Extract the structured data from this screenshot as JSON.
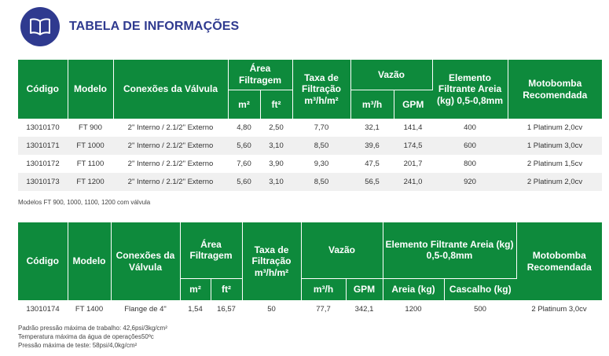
{
  "header": {
    "title": "TABELA DE INFORMAÇÕES",
    "icon": "open-book-icon",
    "accent": "#2f3a8f",
    "header_green": "#0e8a3c"
  },
  "table1": {
    "headers": {
      "codigo": "Código",
      "modelo": "Modelo",
      "conexoes": "Conexões da Válvula",
      "area": "Área Filtragem",
      "m2": "m²",
      "ft2": "ft²",
      "taxa": "Taxa de Filtração m³/h/m²",
      "vazao": "Vazão",
      "m3h": "m³/h",
      "gpm": "GPM",
      "elemento": "Elemento Filtrante Areia (kg) 0,5-0,8mm",
      "motobomba": "Motobomba Recomendada"
    },
    "rows": [
      {
        "codigo": "13010170",
        "modelo": "FT 900",
        "conexoes": "2\" Interno / 2.1/2\" Externo",
        "m2": "4,80",
        "ft2": "2,50",
        "taxa": "7,70",
        "m3h": "32,1",
        "gpm": "141,4",
        "areia": "400",
        "motobomba": "1 Platinum 2,0cv"
      },
      {
        "codigo": "13010171",
        "modelo": "FT 1000",
        "conexoes": "2\" Interno / 2.1/2\" Externo",
        "m2": "5,60",
        "ft2": "3,10",
        "taxa": "8,50",
        "m3h": "39,6",
        "gpm": "174,5",
        "areia": "600",
        "motobomba": "1 Platinum 3,0cv"
      },
      {
        "codigo": "13010172",
        "modelo": "FT 1100",
        "conexoes": "2\" Interno / 2.1/2\" Externo",
        "m2": "7,60",
        "ft2": "3,90",
        "taxa": "9,30",
        "m3h": "47,5",
        "gpm": "201,7",
        "areia": "800",
        "motobomba": "2 Platinum 1,5cv"
      },
      {
        "codigo": "13010173",
        "modelo": "FT 1200",
        "conexoes": "2\" Interno / 2.1/2\" Externo",
        "m2": "5,60",
        "ft2": "3,10",
        "taxa": "8,50",
        "m3h": "56,5",
        "gpm": "241,0",
        "areia": "920",
        "motobomba": "2 Platinum 2,0cv"
      }
    ],
    "note": "Modelos FT 900, 1000, 1100, 1200 com válvula"
  },
  "table2": {
    "headers": {
      "codigo": "Código",
      "modelo": "Modelo",
      "conexoes": "Conexões da Válvula",
      "area": "Área Filtragem",
      "m2": "m²",
      "ft2": "ft²",
      "taxa": "Taxa de Filtração m³/h/m²",
      "vazao": "Vazão",
      "m3h": "m³/h",
      "gpm": "GPM",
      "elemento": "Elemento Filtrante Areia (kg) 0,5-0,8mm",
      "areia": "Areia (kg)",
      "cascalho": "Cascalho (kg)",
      "motobomba": "Motobomba Recomendada"
    },
    "row": {
      "codigo": "13010174",
      "modelo": "FT 1400",
      "conexoes": "Flange de 4\"",
      "m2": "1,54",
      "ft2": "16,57",
      "taxa": "50",
      "m3h": "77,7",
      "gpm": "342,1",
      "areia": "1200",
      "cascalho": "500",
      "motobomba": "2 Platinum 3,0cv"
    }
  },
  "footnotes": [
    "Padrão pressão máxima de trabalho: 42,6psi/3kg/cm²",
    "Temperatura máxima da água de operações50ºc",
    "Pressão máxima de teste: 58psi/4,0kg/cm²"
  ]
}
